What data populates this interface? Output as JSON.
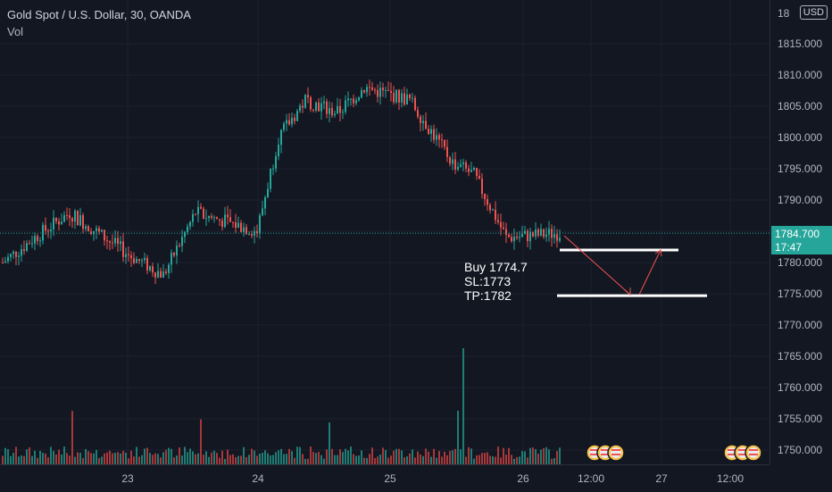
{
  "header": {
    "symbol_title": "Gold Spot / U.S. Dollar, 30, OANDA",
    "volume_label": "Vol"
  },
  "price_axis": {
    "currency": "USD",
    "top_partial": "18",
    "ticks": [
      "1815.000",
      "1810.000",
      "1805.000",
      "1800.000",
      "1795.000",
      "1790.000",
      "1780.000",
      "1775.000",
      "1770.000",
      "1765.000",
      "1760.000",
      "1755.000",
      "1750.000"
    ],
    "last_price": "1784.700",
    "countdown": "17:47"
  },
  "time_axis": {
    "ticks": [
      "23",
      "24",
      "25",
      "26",
      "12:00",
      "27",
      "12:00"
    ]
  },
  "annotation": {
    "line1": "Buy 1774.7",
    "line2": "SL:1773",
    "line3": "TP:1782"
  },
  "colors": {
    "background": "#131722",
    "up": "#26a69a",
    "down": "#ef5350",
    "vol_up": "#1f7d74",
    "vol_down": "#a8383a"
  },
  "chart_data": {
    "type": "candlestick",
    "title": "Gold Spot / U.S. Dollar, 30, OANDA",
    "ylim": [
      1748,
      1818
    ],
    "x_ticks": [
      "23",
      "24",
      "25",
      "26",
      "12:00",
      "27",
      "12:00"
    ],
    "key_closes": [
      {
        "x": "22 late",
        "y": 1784
      },
      {
        "x": "22 late",
        "y": 1788
      },
      {
        "x": "23 open",
        "y": 1778
      },
      {
        "x": "23",
        "y": 1788
      },
      {
        "x": "23 late",
        "y": 1785
      },
      {
        "x": "24 open",
        "y": 1806
      },
      {
        "x": "24",
        "y": 1804
      },
      {
        "x": "24 late",
        "y": 1808
      },
      {
        "x": "24 late",
        "y": 1806
      },
      {
        "x": "25 open",
        "y": 1796
      },
      {
        "x": "25",
        "y": 1794
      },
      {
        "x": "25 late",
        "y": 1784
      },
      {
        "x": "25 late",
        "y": 1792
      },
      {
        "x": "26",
        "y": 1784.7
      }
    ],
    "horizontal_lines": [
      1782,
      1774.7
    ],
    "last_price": 1784.7,
    "volume_peak_x": "25 late"
  }
}
